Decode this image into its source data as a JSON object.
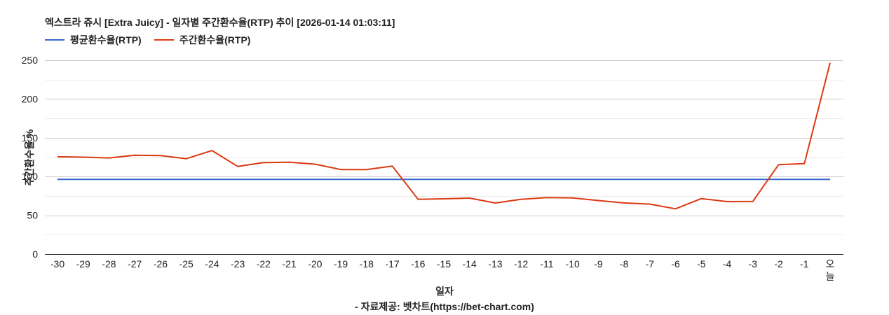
{
  "title": "엑스트라 쥬시 [Extra Juicy] - 일자별 주간환수율(RTP) 추이 [2026-01-14 01:03:11]",
  "legend": [
    {
      "label": "평균환수율(RTP)",
      "color": "#3366cc"
    },
    {
      "label": "주간환수율(RTP)",
      "color": "#dc3912"
    }
  ],
  "xlabel": "일자",
  "ylabel": "주간환수율 %",
  "source": "- 자료제공: 벳차트(https://bet-chart.com)",
  "chart_data": {
    "type": "line",
    "title": "엑스트라 쥬시 [Extra Juicy] - 일자별 주간환수율(RTP) 추이 [2026-01-14 01:03:11]",
    "xlabel": "일자",
    "ylabel": "주간환수율 %",
    "ylim": [
      0,
      250
    ],
    "yticks": [
      0,
      50,
      100,
      150,
      200,
      250
    ],
    "grid": true,
    "legend_position": "top",
    "categories": [
      "-30",
      "-29",
      "-28",
      "-27",
      "-26",
      "-25",
      "-24",
      "-23",
      "-22",
      "-21",
      "-20",
      "-19",
      "-18",
      "-17",
      "-16",
      "-15",
      "-14",
      "-13",
      "-12",
      "-11",
      "-10",
      "-9",
      "-8",
      "-7",
      "-6",
      "-5",
      "-4",
      "-3",
      "-2",
      "-1",
      "오늘"
    ],
    "series": [
      {
        "name": "평균환수율(RTP)",
        "color": "#3366cc",
        "values": [
          96.3,
          96.3,
          96.3,
          96.3,
          96.3,
          96.3,
          96.3,
          96.3,
          96.3,
          96.3,
          96.3,
          96.3,
          96.3,
          96.3,
          96.3,
          96.3,
          96.3,
          96.3,
          96.3,
          96.3,
          96.3,
          96.3,
          96.3,
          96.3,
          96.3,
          96.3,
          96.3,
          96.3,
          96.3,
          96.3,
          96.3
        ]
      },
      {
        "name": "주간환수율(RTP)",
        "color": "#dc3912",
        "values": [
          125.5,
          125,
          124,
          127.5,
          127,
          123,
          133.5,
          113,
          118,
          118.5,
          116,
          109,
          109,
          113.5,
          70.7,
          71.3,
          72.2,
          65.9,
          70.7,
          72.8,
          72.5,
          69,
          66,
          64.4,
          58.4,
          71.6,
          67.7,
          68,
          115.3,
          116.7,
          246.7
        ]
      }
    ]
  }
}
